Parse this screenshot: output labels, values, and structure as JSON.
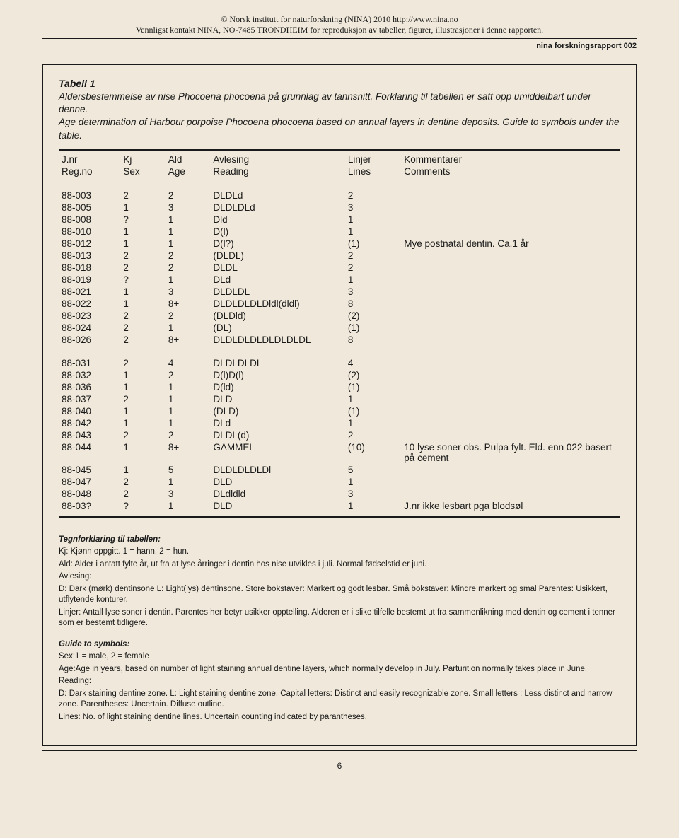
{
  "header": {
    "line1": "© Norsk institutt for naturforskning (NINA) 2010 http://www.nina.no",
    "line2": "Vennligst kontakt NINA, NO-7485 TRONDHEIM for reproduksjon av tabeller, figurer, illustrasjoner i denne rapporten."
  },
  "report_label": "nina forskningsrapport 002",
  "table": {
    "title": "Tabell 1",
    "caption_no": "Aldersbestemmelse av nise Phocoena phocoena på grunnlag av tannsnitt. Forklaring til tabellen er satt opp umiddelbart under denne.",
    "caption_en": "Age determination of Harbour porpoise Phocoena phocoena based on annual layers in dentine deposits. Guide to symbols under the table.",
    "columns": [
      {
        "no": "J.nr",
        "en": "Reg.no"
      },
      {
        "no": "Kj",
        "en": "Sex"
      },
      {
        "no": "Ald",
        "en": "Age"
      },
      {
        "no": "Avlesing",
        "en": "Reading"
      },
      {
        "no": "Linjer",
        "en": "Lines"
      },
      {
        "no": "Kommentarer",
        "en": "Comments"
      }
    ],
    "group1": [
      {
        "reg": "88-003",
        "sex": "2",
        "age": "2",
        "read": "DLDLd",
        "lines": "2",
        "comm": ""
      },
      {
        "reg": "88-005",
        "sex": "1",
        "age": "3",
        "read": "DLDLDLd",
        "lines": "3",
        "comm": ""
      },
      {
        "reg": "88-008",
        "sex": "?",
        "age": "1",
        "read": "Dld",
        "lines": "1",
        "comm": ""
      },
      {
        "reg": "88-010",
        "sex": "1",
        "age": "1",
        "read": "D(l)",
        "lines": "1",
        "comm": ""
      },
      {
        "reg": "88-012",
        "sex": "1",
        "age": "1",
        "read": "D(l?)",
        "lines": "(1)",
        "comm": "Mye postnatal dentin. Ca.1 år"
      },
      {
        "reg": "88-013",
        "sex": "2",
        "age": "2",
        "read": "(DLDL)",
        "lines": "2",
        "comm": ""
      },
      {
        "reg": "88-018",
        "sex": "2",
        "age": "2",
        "read": "DLDL",
        "lines": "2",
        "comm": ""
      },
      {
        "reg": "88-019",
        "sex": "?",
        "age": "1",
        "read": "DLd",
        "lines": "1",
        "comm": ""
      },
      {
        "reg": "88-021",
        "sex": "1",
        "age": "3",
        "read": "DLDLDL",
        "lines": "3",
        "comm": ""
      },
      {
        "reg": "88-022",
        "sex": "1",
        "age": "8+",
        "read": "DLDLDLDLDldl(dldl)",
        "lines": "8",
        "comm": ""
      },
      {
        "reg": "88-023",
        "sex": "2",
        "age": "2",
        "read": "(DLDld)",
        "lines": "(2)",
        "comm": ""
      },
      {
        "reg": "88-024",
        "sex": "2",
        "age": "1",
        "read": "(DL)",
        "lines": "(1)",
        "comm": ""
      },
      {
        "reg": "88-026",
        "sex": "2",
        "age": "8+",
        "read": "DLDLDLDLDLDLDLDL",
        "lines": "8",
        "comm": ""
      }
    ],
    "group2": [
      {
        "reg": "88-031",
        "sex": "2",
        "age": "4",
        "read": "DLDLDLDL",
        "lines": "4",
        "comm": ""
      },
      {
        "reg": "88-032",
        "sex": "1",
        "age": "2",
        "read": "D(l)D(l)",
        "lines": "(2)",
        "comm": ""
      },
      {
        "reg": "88-036",
        "sex": "1",
        "age": "1",
        "read": "D(ld)",
        "lines": "(1)",
        "comm": ""
      },
      {
        "reg": "88-037",
        "sex": "2",
        "age": "1",
        "read": "DLD",
        "lines": "1",
        "comm": ""
      },
      {
        "reg": "88-040",
        "sex": "1",
        "age": "1",
        "read": "(DLD)",
        "lines": "(1)",
        "comm": ""
      },
      {
        "reg": "88-042",
        "sex": "1",
        "age": "1",
        "read": "DLd",
        "lines": "1",
        "comm": ""
      },
      {
        "reg": "88-043",
        "sex": "2",
        "age": "2",
        "read": "DLDL(d)",
        "lines": "2",
        "comm": ""
      },
      {
        "reg": "88-044",
        "sex": "1",
        "age": "8+",
        "read": "GAMMEL",
        "lines": "(10)",
        "comm": "10 lyse soner obs. Pulpa fylt. Eld. enn 022 basert på cement"
      },
      {
        "reg": "88-045",
        "sex": "1",
        "age": "5",
        "read": "DLDLDLDLDl",
        "lines": "5",
        "comm": ""
      },
      {
        "reg": "88-047",
        "sex": "2",
        "age": "1",
        "read": "DLD",
        "lines": "1",
        "comm": ""
      },
      {
        "reg": "88-048",
        "sex": "2",
        "age": "3",
        "read": "DLdldld",
        "lines": "3",
        "comm": ""
      },
      {
        "reg": "88-03?",
        "sex": "?",
        "age": "1",
        "read": "DLD",
        "lines": "1",
        "comm": "J.nr ikke lesbart pga blodsøl"
      }
    ]
  },
  "legend_no": {
    "heading": "Tegnforklaring til tabellen:",
    "kj": "Kj: Kjønn oppgitt. 1 = hann, 2 = hun.",
    "ald": "Ald: Alder i antatt fylte år, ut fra at lyse årringer i dentin hos nise utvikles i juli. Normal fødselstid er juni.",
    "avl_label": "Avlesing:",
    "avl_line": "D: Dark (mørk) dentinsone    L: Light(lys) dentinsone.    Store bokstaver: Markert og godt lesbar.    Små bokstaver: Mindre markert og smal   Parentes: Usikkert, utflytende konturer.",
    "linjer": "Linjer: Antall lyse soner i dentin. Parentes her betyr usikker opptelling. Alderen er i slike tilfelle bestemt ut fra sammenlikning med dentin og cement i tenner som er bestemt tidligere."
  },
  "legend_en": {
    "heading": "Guide to symbols:",
    "sex": "Sex:1 = male, 2 = female",
    "age": "Age:Age in years, based on number of light staining annual dentine layers, which normally develop in July. Parturition normally takes place in June.",
    "read_label": "Reading:",
    "read_line": "D: Dark staining dentine zone.     L: Light staining dentine zone.     Capital letters: Distinct and easily recognizable zone.     Small letters : Less distinct and narrow zone.   Parentheses: Uncertain. Diffuse outline.",
    "lines": "Lines: No. of light staining dentine lines. Uncertain counting indicated by parantheses."
  },
  "page_number": "6"
}
